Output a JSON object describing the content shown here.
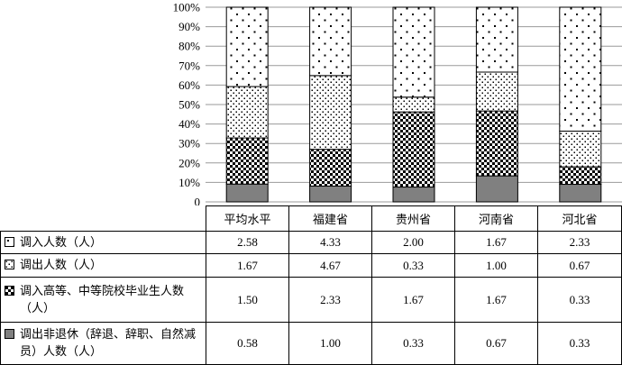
{
  "chart_data": {
    "type": "stacked-bar-100",
    "categories": [
      "平均水平",
      "福建省",
      "贵州省",
      "河南省",
      "河北省"
    ],
    "y_tick_labels": [
      "0",
      "10%",
      "20%",
      "30%",
      "40%",
      "50%",
      "60%",
      "70%",
      "80%",
      "90%",
      "100%"
    ],
    "ylim": [
      0,
      100
    ],
    "grid": true,
    "series": [
      {
        "name": "调出非退休（辞退、辞职、自然减员）人数（人）",
        "values": [
          0.58,
          1.0,
          0.33,
          0.67,
          0.33
        ],
        "pattern": "solid-gray"
      },
      {
        "name": "调入高等、中等院校毕业生人数（人）",
        "values": [
          1.5,
          2.33,
          1.67,
          1.67,
          0.33
        ],
        "pattern": "checker"
      },
      {
        "name": "调出人数（人）",
        "values": [
          1.67,
          4.67,
          0.33,
          1.0,
          0.67
        ],
        "pattern": "dense-dots"
      },
      {
        "name": "调入人数（人）",
        "values": [
          2.58,
          4.33,
          2.0,
          1.67,
          2.33
        ],
        "pattern": "sparse-dots"
      }
    ]
  },
  "table": {
    "display_values": [
      [
        "2.58",
        "4.33",
        "2.00",
        "1.67",
        "2.33"
      ],
      [
        "1.67",
        "4.67",
        "0.33",
        "1.00",
        "0.67"
      ],
      [
        "1.50",
        "2.33",
        "1.67",
        "1.67",
        "0.33"
      ],
      [
        "0.58",
        "1.00",
        "0.33",
        "0.67",
        "0.33"
      ]
    ]
  }
}
